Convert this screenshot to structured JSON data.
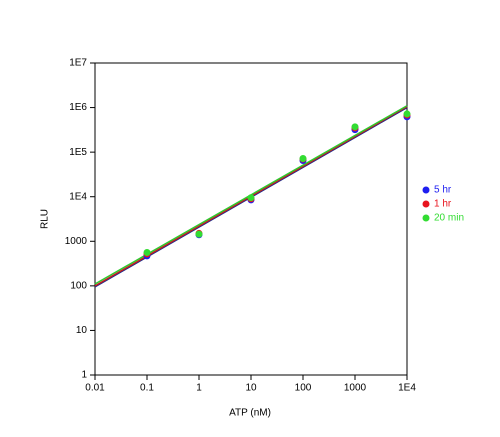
{
  "chart_data": {
    "type": "scatter",
    "log_x": true,
    "log_y": true,
    "x_label": "ATP (nM)",
    "y_label": "RLU",
    "x": [
      0.1,
      1,
      10,
      100,
      1000,
      10000
    ],
    "xlim": [
      0.01,
      10000
    ],
    "xticks": [
      0.01,
      0.1,
      1,
      10,
      100,
      1000,
      {
        "value": 10000,
        "label": "1E4"
      }
    ],
    "ylim": [
      1,
      10000000
    ],
    "yticks": [
      1,
      10,
      100,
      1000,
      {
        "value": 10000,
        "label": "1E4"
      },
      {
        "value": 100000,
        "label": "1E5"
      },
      {
        "value": 1000000,
        "label": "1E6"
      },
      {
        "value": 10000000,
        "label": "1E7"
      }
    ],
    "legend": "right",
    "series": [
      {
        "name": "5 hr",
        "color": "#1e1ef0",
        "line_color": "#1c2c8c",
        "values": [
          470,
          1400,
          8500,
          65000,
          320000,
          620000
        ],
        "fit": {
          "x": [
            0.01,
            10000
          ],
          "values": [
            95,
            1000000
          ]
        }
      },
      {
        "name": "1 hr",
        "color": "#e8141e",
        "line_color": "#c81e1e",
        "values": [
          520,
          1500,
          9000,
          70000,
          350000,
          680000
        ],
        "fit": {
          "x": [
            0.01,
            10000
          ],
          "values": [
            100,
            1050000
          ]
        }
      },
      {
        "name": "20 min",
        "color": "#32dc32",
        "line_color": "#2ec82e",
        "values": [
          560,
          1450,
          9500,
          72000,
          370000,
          720000
        ],
        "fit": {
          "x": [
            0.01,
            10000
          ],
          "values": [
            110,
            1100000
          ]
        }
      }
    ]
  }
}
